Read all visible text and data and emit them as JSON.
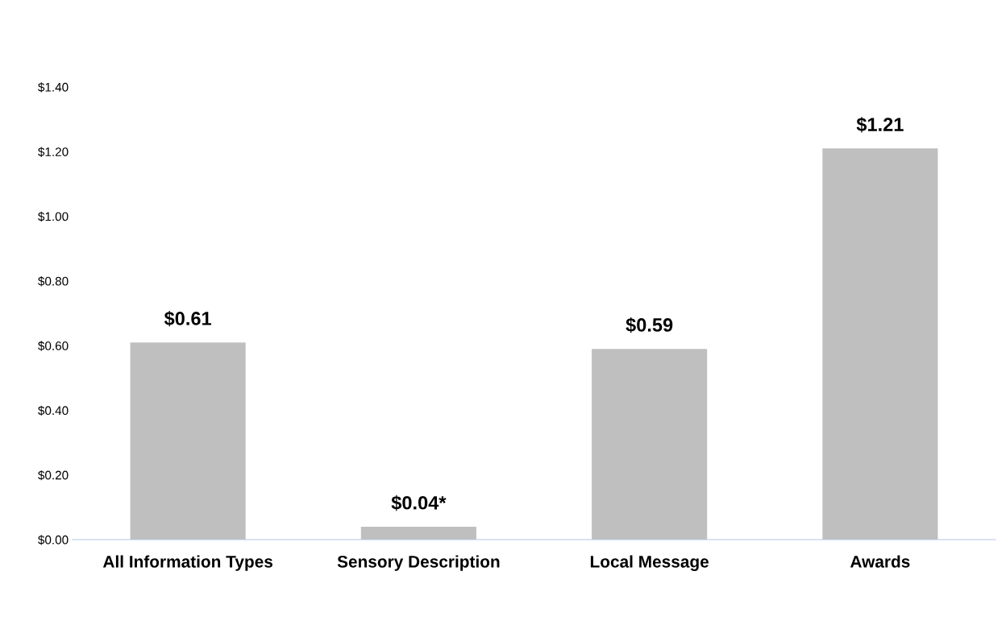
{
  "chart_data": {
    "type": "bar",
    "categories": [
      "All Information Types",
      "Sensory Description",
      "Local Message",
      "Awards"
    ],
    "values": [
      0.61,
      0.04,
      0.59,
      1.21
    ],
    "value_labels": [
      "$0.61",
      "$0.04*",
      "$0.59",
      "$1.21"
    ],
    "color": "#bfbfbf",
    "ylim": [
      0,
      1.4
    ],
    "yticks": [
      {
        "value": 0,
        "label": "$0.00"
      },
      {
        "value": 0.2,
        "label": "$0.20"
      },
      {
        "value": 0.4,
        "label": "$0.40"
      },
      {
        "value": 0.6,
        "label": "$0.60"
      },
      {
        "value": 0.8,
        "label": "$0.80"
      },
      {
        "value": 1.0,
        "label": "$1.00"
      },
      {
        "value": 1.2,
        "label": "$1.20"
      },
      {
        "value": 1.4,
        "label": "$1.40"
      }
    ],
    "grid": false
  }
}
